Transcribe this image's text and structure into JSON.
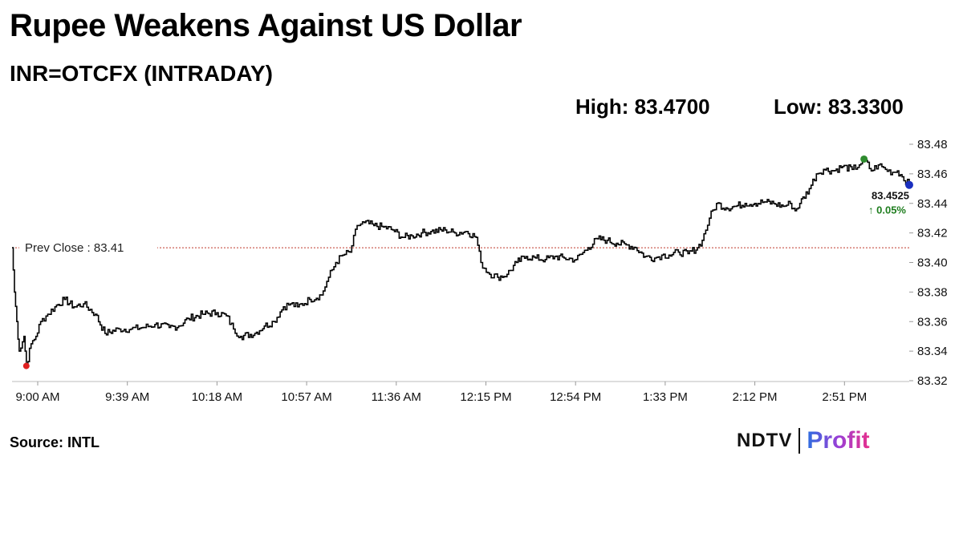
{
  "header": {
    "title": "Rupee Weakens Against US Dollar",
    "subtitle": "INR=OTCFX (INTRADAY)",
    "high_label": "High: 83.4700",
    "low_label": "Low: 83.3300"
  },
  "footer": {
    "source": "Source: INTL",
    "logo_left": "NDTV",
    "logo_right": "Profit"
  },
  "colors": {
    "line": "#000000",
    "prev_close_line": "#c0392b",
    "low_marker": "#e02020",
    "high_marker": "#2e8b2e",
    "last_marker": "#1a2fbf",
    "change_text": "#1e7d1e"
  },
  "chart_data": {
    "type": "line",
    "title": "Rupee Weakens Against US Dollar",
    "xlabel": "",
    "ylabel": "",
    "ylim": [
      83.32,
      83.48
    ],
    "grid": false,
    "yticks": [
      "83.32",
      "83.34",
      "83.36",
      "83.38",
      "83.40",
      "83.42",
      "83.44",
      "83.46",
      "83.48"
    ],
    "xtick_labels": [
      "9:00 AM",
      "9:39 AM",
      "10:18 AM",
      "10:57 AM",
      "11:36 AM",
      "12:15 PM",
      "12:54 PM",
      "1:33 PM",
      "2:12 PM",
      "2:51 PM"
    ],
    "time_range": [
      "9:00",
      "15:17"
    ],
    "prev_close": {
      "label": "Prev Close : 83.41",
      "value": 83.41
    },
    "last": {
      "value_label": "83.4525",
      "value": 83.4525,
      "change_label": "↑ 0.05%"
    },
    "high": {
      "time": "14:58",
      "value": 83.47
    },
    "low": {
      "time": "9:06",
      "value": 83.33
    },
    "series": [
      {
        "points": [
          [
            "9:00",
            83.41
          ],
          [
            "9:01",
            83.38
          ],
          [
            "9:02",
            83.36
          ],
          [
            "9:03",
            83.34
          ],
          [
            "9:05",
            83.35
          ],
          [
            "9:06",
            83.33
          ],
          [
            "9:08",
            83.345
          ],
          [
            "9:10",
            83.35
          ],
          [
            "9:12",
            83.36
          ],
          [
            "9:15",
            83.365
          ],
          [
            "9:18",
            83.37
          ],
          [
            "9:22",
            83.375
          ],
          [
            "9:26",
            83.37
          ],
          [
            "9:30",
            83.372
          ],
          [
            "9:35",
            83.365
          ],
          [
            "9:39",
            83.352
          ],
          [
            "9:45",
            83.355
          ],
          [
            "9:50",
            83.355
          ],
          [
            "9:55",
            83.356
          ],
          [
            "10:00",
            83.358
          ],
          [
            "10:06",
            83.356
          ],
          [
            "10:10",
            83.357
          ],
          [
            "10:14",
            83.362
          ],
          [
            "10:20",
            83.365
          ],
          [
            "10:26",
            83.366
          ],
          [
            "10:30",
            83.364
          ],
          [
            "10:33",
            83.355
          ],
          [
            "10:36",
            83.35
          ],
          [
            "10:42",
            83.352
          ],
          [
            "10:46",
            83.357
          ],
          [
            "10:50",
            83.36
          ],
          [
            "10:54",
            83.37
          ],
          [
            "10:57",
            83.372
          ],
          [
            "11:00",
            83.37
          ],
          [
            "11:05",
            83.375
          ],
          [
            "11:10",
            83.378
          ],
          [
            "11:13",
            83.39
          ],
          [
            "11:16",
            83.4
          ],
          [
            "11:19",
            83.405
          ],
          [
            "11:22",
            83.407
          ],
          [
            "11:25",
            83.425
          ],
          [
            "11:28",
            83.427
          ],
          [
            "11:32",
            83.425
          ],
          [
            "11:36",
            83.424
          ],
          [
            "11:40",
            83.422
          ],
          [
            "11:44",
            83.417
          ],
          [
            "11:48",
            83.418
          ],
          [
            "11:52",
            83.42
          ],
          [
            "11:56",
            83.421
          ],
          [
            "12:02",
            83.422
          ],
          [
            "12:06",
            83.42
          ],
          [
            "12:11",
            83.421
          ],
          [
            "12:15",
            83.417
          ],
          [
            "12:17",
            83.4
          ],
          [
            "12:20",
            83.393
          ],
          [
            "12:24",
            83.39
          ],
          [
            "12:28",
            83.392
          ],
          [
            "12:32",
            83.4
          ],
          [
            "12:36",
            83.404
          ],
          [
            "12:40",
            83.403
          ],
          [
            "12:44",
            83.402
          ],
          [
            "12:48",
            83.404
          ],
          [
            "12:52",
            83.403
          ],
          [
            "12:57",
            83.402
          ],
          [
            "13:02",
            83.41
          ],
          [
            "13:06",
            83.416
          ],
          [
            "13:10",
            83.415
          ],
          [
            "13:14",
            83.413
          ],
          [
            "13:18",
            83.412
          ],
          [
            "13:22",
            83.41
          ],
          [
            "13:26",
            83.404
          ],
          [
            "13:30",
            83.403
          ],
          [
            "13:33",
            83.405
          ],
          [
            "13:36",
            83.405
          ],
          [
            "13:40",
            83.407
          ],
          [
            "13:44",
            83.406
          ],
          [
            "13:48",
            83.41
          ],
          [
            "13:50",
            83.415
          ],
          [
            "13:53",
            83.43
          ],
          [
            "13:56",
            83.44
          ],
          [
            "14:00",
            83.437
          ],
          [
            "14:04",
            83.438
          ],
          [
            "14:08",
            83.44
          ],
          [
            "14:12",
            83.44
          ],
          [
            "14:16",
            83.441
          ],
          [
            "14:20",
            83.44
          ],
          [
            "14:24",
            83.438
          ],
          [
            "14:27",
            83.44
          ],
          [
            "14:29",
            83.435
          ],
          [
            "14:31",
            83.44
          ],
          [
            "14:35",
            83.45
          ],
          [
            "14:38",
            83.46
          ],
          [
            "14:41",
            83.463
          ],
          [
            "14:45",
            83.462
          ],
          [
            "14:49",
            83.465
          ],
          [
            "14:53",
            83.463
          ],
          [
            "14:56",
            83.466
          ],
          [
            "14:58",
            83.47
          ],
          [
            "15:01",
            83.462
          ],
          [
            "15:04",
            83.466
          ],
          [
            "15:07",
            83.463
          ],
          [
            "15:10",
            83.461
          ],
          [
            "15:12",
            83.462
          ],
          [
            "15:14",
            83.458
          ],
          [
            "15:17",
            83.4525
          ]
        ]
      }
    ]
  }
}
